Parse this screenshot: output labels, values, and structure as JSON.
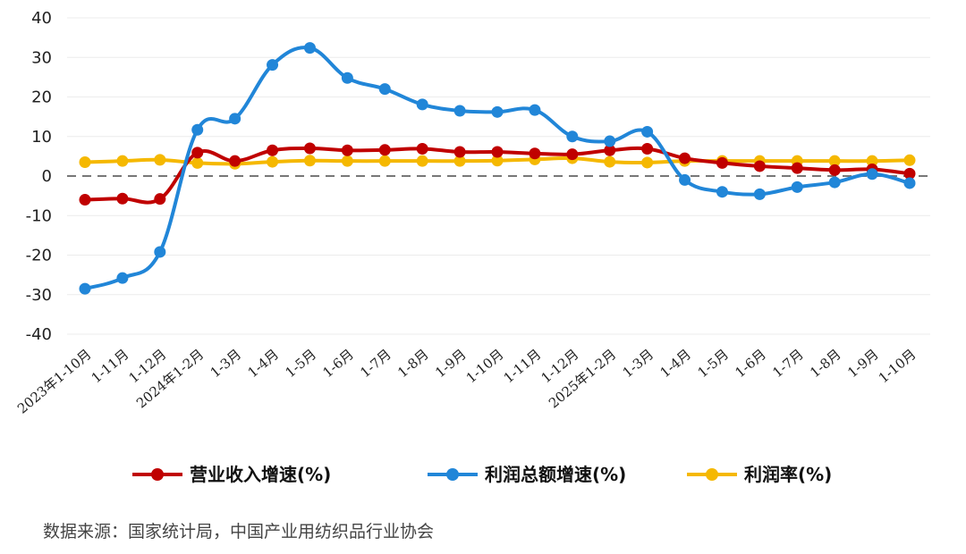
{
  "chart_data": {
    "type": "line",
    "categories": [
      "2023年1-10月",
      "1-11月",
      "1-12月",
      "2024年1-2月",
      "1-3月",
      "1-4月",
      "1-5月",
      "1-6月",
      "1-7月",
      "1-8月",
      "1-9月",
      "1-10月",
      "1-11月",
      "1-12月",
      "2025年1-2月",
      "1-3月",
      "1-4月",
      "1-5月",
      "1-6月",
      "1-7月",
      "1-8月",
      "1-9月",
      "1-10月"
    ],
    "ylim": [
      -40,
      40
    ],
    "yticks": [
      40,
      30,
      20,
      10,
      0,
      -10,
      -20,
      -30,
      -40
    ],
    "grid": true,
    "zero_line": "dashed",
    "legend_position": "bottom",
    "series": [
      {
        "name": "营业收入增速(%)",
        "color": "#c00000",
        "values": [
          -6.0,
          -5.7,
          -5.8,
          5.9,
          3.8,
          6.5,
          7.0,
          6.5,
          6.6,
          6.9,
          6.1,
          6.1,
          5.7,
          5.5,
          6.5,
          6.9,
          4.5,
          3.3,
          2.5,
          2.0,
          1.5,
          1.7,
          0.6
        ]
      },
      {
        "name": "利润总额增速(%)",
        "color": "#2186d8",
        "values": [
          -28.5,
          -25.8,
          -19.2,
          11.7,
          14.5,
          28.1,
          32.4,
          24.8,
          22.0,
          18.1,
          16.5,
          16.2,
          16.7,
          10.0,
          8.8,
          11.2,
          -1.0,
          -4.0,
          -4.6,
          -2.8,
          -1.6,
          0.5,
          -1.8
        ]
      },
      {
        "name": "利润率(%)",
        "color": "#f5b800",
        "values": [
          3.5,
          3.8,
          4.1,
          3.3,
          3.1,
          3.6,
          3.9,
          3.8,
          3.8,
          3.8,
          3.8,
          3.9,
          4.2,
          4.5,
          3.6,
          3.4,
          3.8,
          3.8,
          3.8,
          3.8,
          3.8,
          3.8,
          4.0
        ]
      }
    ]
  },
  "source_text": "数据来源：国家统计局，中国产业用纺织品行业协会"
}
